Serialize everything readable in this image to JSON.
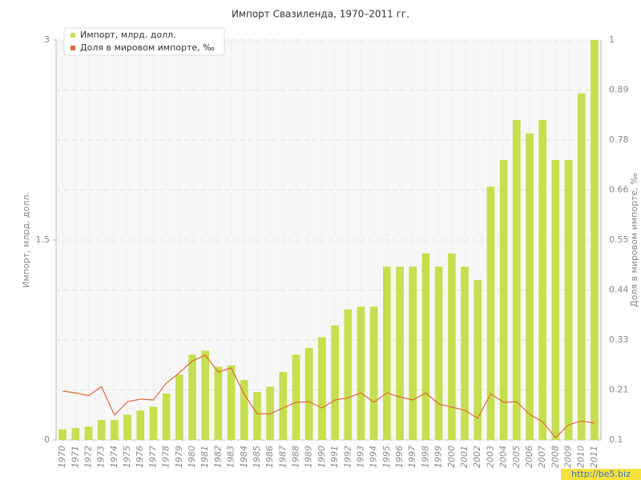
{
  "chart_data": {
    "type": "combo",
    "title": "Импорт Свазиленда, 1970–2011 гг.",
    "y_label": "Импорт, млрд. долл.",
    "y2_label": "Доля в мировом импорте, ‰",
    "watermark": "http://be5.biz",
    "categories": [
      "1970",
      "1971",
      "1972",
      "1973",
      "1974",
      "1975",
      "1976",
      "1977",
      "1978",
      "1979",
      "1980",
      "1981",
      "1982",
      "1983",
      "1984",
      "1985",
      "1986",
      "1987",
      "1988",
      "1989",
      "1990",
      "1991",
      "1992",
      "1993",
      "1994",
      "1995",
      "1996",
      "1997",
      "1998",
      "1999",
      "2000",
      "2001",
      "2002",
      "2003",
      "2004",
      "2005",
      "2006",
      "2007",
      "2008",
      "2009",
      "2010",
      "2011"
    ],
    "series": [
      {
        "name": "Импорт, млрд. долл.",
        "type": "bar",
        "color": "#c6df4f",
        "axis": "y",
        "values": [
          0.08,
          0.09,
          0.1,
          0.15,
          0.15,
          0.19,
          0.22,
          0.25,
          0.35,
          0.49,
          0.64,
          0.67,
          0.55,
          0.56,
          0.45,
          0.36,
          0.4,
          0.51,
          0.64,
          0.69,
          0.77,
          0.86,
          0.98,
          1.0,
          1.0,
          1.3,
          1.3,
          1.3,
          1.4,
          1.3,
          1.4,
          1.3,
          1.2,
          1.9,
          2.1,
          2.4,
          2.3,
          2.4,
          2.1,
          2.1,
          2.6,
          3.0
        ]
      },
      {
        "name": "Доля в мировом импорте, ‰",
        "type": "line",
        "color": "#e0683a",
        "axis": "y2",
        "values": [
          0.21,
          0.206,
          0.2,
          0.22,
          0.156,
          0.186,
          0.192,
          0.19,
          0.228,
          0.251,
          0.278,
          0.291,
          0.253,
          0.262,
          0.203,
          0.159,
          0.159,
          0.172,
          0.185,
          0.186,
          0.172,
          0.19,
          0.195,
          0.206,
          0.185,
          0.206,
          0.197,
          0.19,
          0.206,
          0.181,
          0.174,
          0.167,
          0.149,
          0.204,
          0.185,
          0.186,
          0.158,
          0.141,
          0.105,
          0.134,
          0.143,
          0.138
        ]
      }
    ],
    "ylim": [
      0,
      3
    ],
    "yticks": [
      0,
      1.5,
      3
    ],
    "y2lim": [
      0.1,
      1
    ],
    "y2ticks": [
      0.1,
      {
        "value": 0.2125,
        "label": "0.21"
      },
      {
        "value": 0.325,
        "label": "0.33"
      },
      {
        "value": 0.4375,
        "label": "0.44"
      },
      0.55,
      {
        "value": 0.6625,
        "label": "0.66"
      },
      {
        "value": 0.775,
        "label": "0.78"
      },
      {
        "value": 0.8875,
        "label": "0.89"
      },
      1
    ],
    "grid": true,
    "legend": "top-left"
  }
}
